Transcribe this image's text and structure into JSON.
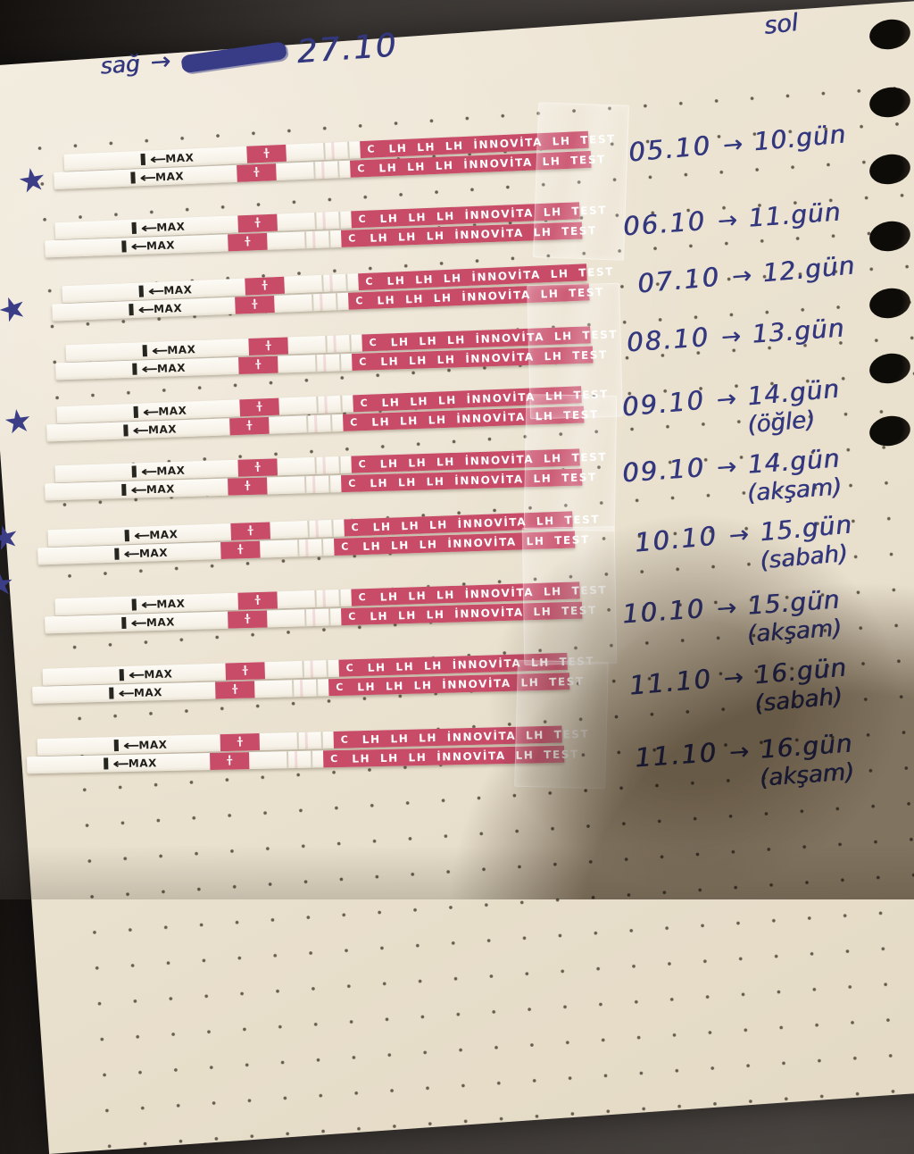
{
  "notes": {
    "top_left_label": "sağ",
    "top_left_arrow": "→",
    "top_left_date": "27.10",
    "top_right_label": "sol"
  },
  "strip": {
    "arrow_left": "←",
    "max_label": "MAX",
    "t_label": "T",
    "c_label": "C",
    "brand_text": "LH LH LH İNNOVİTA LH TEST"
  },
  "entries": [
    {
      "date": "05.10",
      "arrow": "→",
      "day": "10.gün",
      "note": ""
    },
    {
      "date": "06.10",
      "arrow": "→",
      "day": "11.gün",
      "note": ""
    },
    {
      "date": "07.10",
      "arrow": "→",
      "day": "12.gün",
      "note": ""
    },
    {
      "date": "08.10",
      "arrow": "→",
      "day": "13.gün",
      "note": ""
    },
    {
      "date": "09.10",
      "arrow": "→",
      "day": "14.gün",
      "note": "(öğle)"
    },
    {
      "date": "09.10",
      "arrow": "→",
      "day": "14.gün",
      "note": "(akşam)"
    },
    {
      "date": "10.10",
      "arrow": "→",
      "day": "15.gün",
      "note": "(sabah)"
    },
    {
      "date": "10.10",
      "arrow": "→",
      "day": "15.gün",
      "note": "(akşam)"
    },
    {
      "date": "11.10",
      "arrow": "→",
      "day": "16.gün",
      "note": "(sabah)"
    },
    {
      "date": "11.10",
      "arrow": "→",
      "day": "16.gün",
      "note": "(akşam)"
    }
  ],
  "stars": {
    "glyph": "★"
  },
  "colors": {
    "paper": "#eae1cf",
    "ink": "#33377e",
    "strip_pink": "#c84b68",
    "strip_body": "#faf6ee",
    "background_dark": "#3b3734"
  }
}
